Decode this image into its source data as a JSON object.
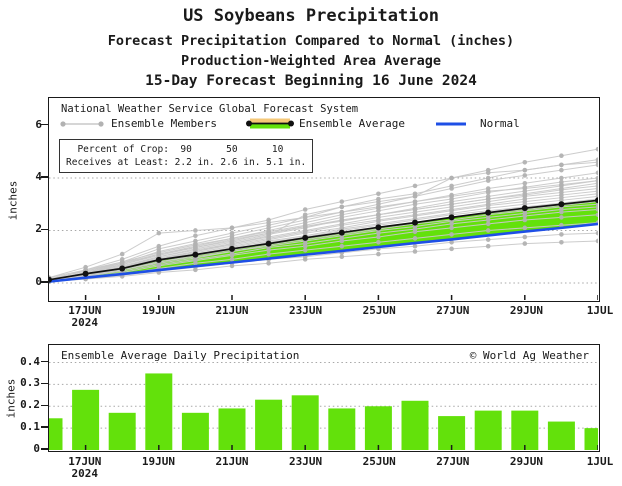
{
  "header": {
    "line1": "US Soybeans Precipitation",
    "line2": "Forecast Precipitation Compared to Normal (inches)",
    "line3": "Production-Weighted Area Average",
    "line4": "15-Day Forecast Beginning 16 June 2024"
  },
  "legend": {
    "header": "National Weather Service Global Forecast System",
    "members_label": "Ensemble Members",
    "average_label": "Ensemble Average",
    "normal_label": "Normal"
  },
  "stats_box": {
    "line1": "  Percent of Crop:  90      50      10",
    "line2": "Receives at Least: 2.2 in. 2.6 in. 5.1 in."
  },
  "colors": {
    "green": "#63E10B",
    "blue": "#1E4FE6",
    "member_line": "#C9C9C9",
    "member_dot": "#B2B2B2",
    "average": "#111111",
    "legend_orange": "#F5C878",
    "grid": "#A8A8A8",
    "frame": "#1a1a1a"
  },
  "chart_data": [
    {
      "type": "line",
      "title": "Forecast cumulative precipitation vs normal",
      "x": [
        "16JUN",
        "17JUN",
        "18JUN",
        "19JUN",
        "20JUN",
        "21JUN",
        "22JUN",
        "23JUN",
        "24JUN",
        "25JUN",
        "26JUN",
        "27JUN",
        "28JUN",
        "29JUN",
        "30JUN",
        "1JUL"
      ],
      "xtick_labels": [
        "17JUN",
        "19JUN",
        "21JUN",
        "23JUN",
        "25JUN",
        "27JUN",
        "29JUN",
        "1JUL"
      ],
      "xtick_days": [
        1,
        3,
        5,
        7,
        9,
        11,
        13,
        15
      ],
      "year_label": "2024",
      "ylabel": "inches",
      "yticks": [
        0,
        2,
        4,
        6
      ],
      "ytick_labels": [
        "0",
        "2",
        "4",
        "6"
      ],
      "grid_yticks": [
        0,
        2,
        4
      ],
      "ylim": [
        -0.65,
        7.05
      ],
      "legend_position": "top-left-inside",
      "grid": true,
      "series": [
        {
          "name": "Normal",
          "values": [
            0.05,
            0.2,
            0.34,
            0.49,
            0.64,
            0.78,
            0.93,
            1.08,
            1.22,
            1.37,
            1.52,
            1.66,
            1.81,
            1.96,
            2.1,
            2.25
          ]
        },
        {
          "name": "Ensemble Average",
          "values": [
            0.12,
            0.35,
            0.55,
            0.88,
            1.08,
            1.3,
            1.5,
            1.72,
            1.92,
            2.12,
            2.3,
            2.5,
            2.68,
            2.85,
            3.0,
            3.15
          ]
        }
      ],
      "members": [
        [
          0.1,
          0.5,
          0.9,
          1.4,
          1.8,
          2.1,
          2.4,
          2.8,
          3.1,
          3.4,
          3.7,
          4.0,
          4.3,
          4.6,
          4.85,
          5.1
        ],
        [
          0.15,
          0.45,
          0.8,
          1.3,
          1.6,
          1.9,
          2.2,
          2.5,
          2.9,
          3.2,
          3.4,
          3.7,
          4.0,
          4.3,
          4.5,
          4.7
        ],
        [
          0.1,
          0.4,
          0.75,
          1.2,
          1.5,
          1.8,
          2.1,
          2.4,
          2.7,
          3.0,
          3.3,
          3.6,
          3.9,
          4.1,
          4.3,
          4.5
        ],
        [
          0.1,
          0.35,
          0.7,
          1.1,
          1.4,
          1.7,
          2.0,
          2.3,
          2.6,
          2.85,
          3.1,
          3.35,
          3.6,
          3.8,
          4.0,
          4.2
        ],
        [
          0.2,
          0.5,
          0.8,
          1.15,
          1.45,
          1.7,
          1.95,
          2.2,
          2.5,
          2.75,
          3.0,
          3.2,
          3.45,
          3.65,
          3.85,
          4.0
        ],
        [
          0.05,
          0.3,
          0.6,
          1.0,
          1.3,
          1.55,
          1.85,
          2.1,
          2.4,
          2.6,
          2.85,
          3.1,
          3.3,
          3.5,
          3.7,
          3.9
        ],
        [
          0.1,
          0.4,
          0.7,
          1.05,
          1.35,
          1.6,
          1.9,
          2.15,
          2.4,
          2.6,
          2.8,
          3.0,
          3.2,
          3.4,
          3.6,
          3.8
        ],
        [
          0.15,
          0.45,
          0.75,
          1.1,
          1.35,
          1.65,
          1.9,
          2.15,
          2.35,
          2.6,
          2.8,
          3.0,
          3.2,
          3.35,
          3.55,
          3.7
        ],
        [
          0.1,
          0.35,
          0.65,
          1.0,
          1.25,
          1.5,
          1.75,
          2.0,
          2.25,
          2.5,
          2.7,
          2.9,
          3.1,
          3.3,
          3.45,
          3.6
        ],
        [
          0.1,
          0.35,
          0.6,
          0.95,
          1.2,
          1.45,
          1.7,
          1.95,
          2.2,
          2.4,
          2.6,
          2.8,
          3.0,
          3.2,
          3.35,
          3.5
        ],
        [
          0.1,
          0.3,
          0.6,
          0.9,
          1.15,
          1.4,
          1.65,
          1.9,
          2.1,
          2.35,
          2.55,
          2.75,
          2.95,
          3.1,
          3.25,
          3.4
        ],
        [
          0.05,
          0.3,
          0.55,
          0.9,
          1.1,
          1.35,
          1.6,
          1.8,
          2.05,
          2.25,
          2.45,
          2.65,
          2.85,
          3.0,
          3.15,
          3.3
        ],
        [
          0.1,
          0.3,
          0.55,
          0.85,
          1.1,
          1.3,
          1.55,
          1.75,
          2.0,
          2.2,
          2.4,
          2.6,
          2.75,
          2.9,
          3.05,
          3.2
        ],
        [
          0.1,
          0.3,
          0.5,
          0.8,
          1.05,
          1.25,
          1.5,
          1.7,
          1.9,
          2.1,
          2.3,
          2.5,
          2.65,
          2.8,
          2.95,
          3.1
        ],
        [
          0.05,
          0.25,
          0.5,
          0.8,
          1.0,
          1.2,
          1.45,
          1.65,
          1.85,
          2.05,
          2.25,
          2.4,
          2.6,
          2.75,
          2.9,
          3.0
        ],
        [
          0.1,
          0.25,
          0.5,
          0.75,
          0.95,
          1.2,
          1.4,
          1.6,
          1.8,
          2.0,
          2.15,
          2.35,
          2.5,
          2.65,
          2.8,
          2.9
        ],
        [
          0.05,
          0.25,
          0.45,
          0.7,
          0.9,
          1.1,
          1.35,
          1.5,
          1.7,
          1.9,
          2.05,
          2.25,
          2.4,
          2.55,
          2.7,
          2.8
        ],
        [
          0.05,
          0.2,
          0.4,
          0.65,
          0.85,
          1.05,
          1.25,
          1.4,
          1.6,
          1.75,
          1.95,
          2.1,
          2.25,
          2.4,
          2.5,
          2.6
        ],
        [
          0.05,
          0.2,
          0.35,
          0.55,
          0.75,
          0.9,
          1.1,
          1.25,
          1.4,
          1.55,
          1.7,
          1.85,
          2.0,
          2.1,
          2.2,
          2.3
        ],
        [
          0.05,
          0.15,
          0.3,
          0.45,
          0.6,
          0.75,
          0.9,
          1.0,
          1.15,
          1.3,
          1.4,
          1.55,
          1.65,
          1.75,
          1.85,
          1.9
        ],
        [
          0.05,
          0.15,
          0.25,
          0.4,
          0.5,
          0.65,
          0.75,
          0.9,
          1.0,
          1.1,
          1.2,
          1.3,
          1.4,
          1.5,
          1.55,
          1.6
        ],
        [
          0.1,
          0.3,
          0.6,
          0.9,
          1.2,
          1.5,
          1.8,
          2.6,
          2.9,
          3.1,
          3.3,
          4.0,
          4.2,
          4.3,
          4.5,
          4.6
        ],
        [
          0.2,
          0.6,
          1.1,
          1.9,
          2.0,
          2.1,
          2.3,
          2.5,
          2.7,
          2.9,
          3.1,
          3.3,
          3.5,
          3.6,
          3.75,
          3.9
        ]
      ]
    },
    {
      "type": "bar",
      "title": "Ensemble Average Daily Precipitation",
      "credit": "© World Ag Weather",
      "categories": [
        "16JUN",
        "17JUN",
        "18JUN",
        "19JUN",
        "20JUN",
        "21JUN",
        "22JUN",
        "23JUN",
        "24JUN",
        "25JUN",
        "26JUN",
        "27JUN",
        "28JUN",
        "29JUN",
        "30JUN",
        "1JUL"
      ],
      "values": [
        0.145,
        0.275,
        0.17,
        0.35,
        0.17,
        0.19,
        0.23,
        0.25,
        0.19,
        0.2,
        0.225,
        0.155,
        0.18,
        0.18,
        0.13,
        0.1
      ],
      "xtick_labels": [
        "17JUN",
        "19JUN",
        "21JUN",
        "23JUN",
        "25JUN",
        "27JUN",
        "29JUN",
        "1JUL"
      ],
      "xtick_days": [
        1,
        3,
        5,
        7,
        9,
        11,
        13,
        15
      ],
      "year_label": "2024",
      "ylabel": "inches",
      "yticks": [
        0,
        0.1,
        0.2,
        0.3,
        0.4
      ],
      "ytick_labels": [
        "0",
        "0.1",
        "0.2",
        "0.3",
        "0.4"
      ],
      "grid_yticks": [
        0.1,
        0.2,
        0.3,
        0.4
      ],
      "ylim": [
        0,
        0.48
      ],
      "grid": true
    }
  ]
}
